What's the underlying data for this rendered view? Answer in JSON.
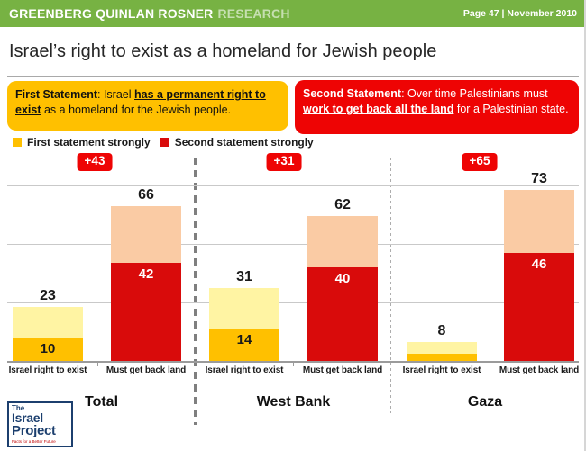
{
  "header": {
    "brand_primary": "GREENBERG QUINLAN ROSNER",
    "brand_secondary": "RESEARCH",
    "page_info": "Page 47 | November 2010"
  },
  "title": "Israel’s right to exist as a homeland for Jewish people",
  "statements": {
    "first": {
      "segments": [
        {
          "t": "First Statement",
          "b": true
        },
        {
          "t": ": Israel "
        },
        {
          "t": "has a permanent right to exist",
          "b": true,
          "u": true
        },
        {
          "t": " as a homeland for the Jewish people."
        }
      ],
      "bg_color": "#FFC000"
    },
    "second": {
      "segments": [
        {
          "t": "Second Statement",
          "b": true
        },
        {
          "t": ": Over time Palestinians must "
        },
        {
          "t": "work to get back all the land",
          "b": true,
          "u": true
        },
        {
          "t": " for a Palestinian state."
        }
      ],
      "bg_color": "#EE0404"
    }
  },
  "legend": [
    {
      "label": "First statement strongly",
      "color": "#FFC000"
    },
    {
      "label": "Second statement strongly",
      "color": "#D90B0B"
    }
  ],
  "chart_data": {
    "type": "bar",
    "stacked": true,
    "title": "Israel’s right to exist as a homeland for Jewish people",
    "ylim": [
      0,
      75
    ],
    "gridlines": [
      25,
      50,
      75
    ],
    "grid": true,
    "legend_position": "top-left",
    "series": [
      {
        "name": "First statement",
        "strong_name": "First statement strongly",
        "strong_color": "#FFC000",
        "weak_color": "#FFF4A3",
        "strong_text_color": "#1a1a1a"
      },
      {
        "name": "Second statement",
        "strong_name": "Second statement strongly",
        "strong_color": "#D90B0B",
        "weak_color": "#FACBA4",
        "strong_text_color": "#ffffff"
      }
    ],
    "groups": [
      {
        "label": "Total",
        "advantage": "+43",
        "bars": [
          {
            "category": "Israel right to exist",
            "total": 23,
            "strong": 10,
            "strong_label": "10"
          },
          {
            "category": "Must get back land",
            "total": 66,
            "strong": 42,
            "strong_label": "42"
          }
        ]
      },
      {
        "label": "West Bank",
        "advantage": "+31",
        "bars": [
          {
            "category": "Israel right to exist",
            "total": 31,
            "strong": 14,
            "strong_label": "14"
          },
          {
            "category": "Must get back land",
            "total": 62,
            "strong": 40,
            "strong_label": "40"
          }
        ]
      },
      {
        "label": "Gaza",
        "advantage": "+65",
        "bars": [
          {
            "category": "Israel right to exist",
            "total": 8,
            "strong": 3,
            "strong_label": ""
          },
          {
            "category": "Must get back land",
            "total": 73,
            "strong": 46,
            "strong_label": "46"
          }
        ]
      }
    ]
  },
  "logo": {
    "lines": [
      "The",
      "Israel",
      "Project"
    ],
    "tagline": "Facts for a Better Future"
  }
}
